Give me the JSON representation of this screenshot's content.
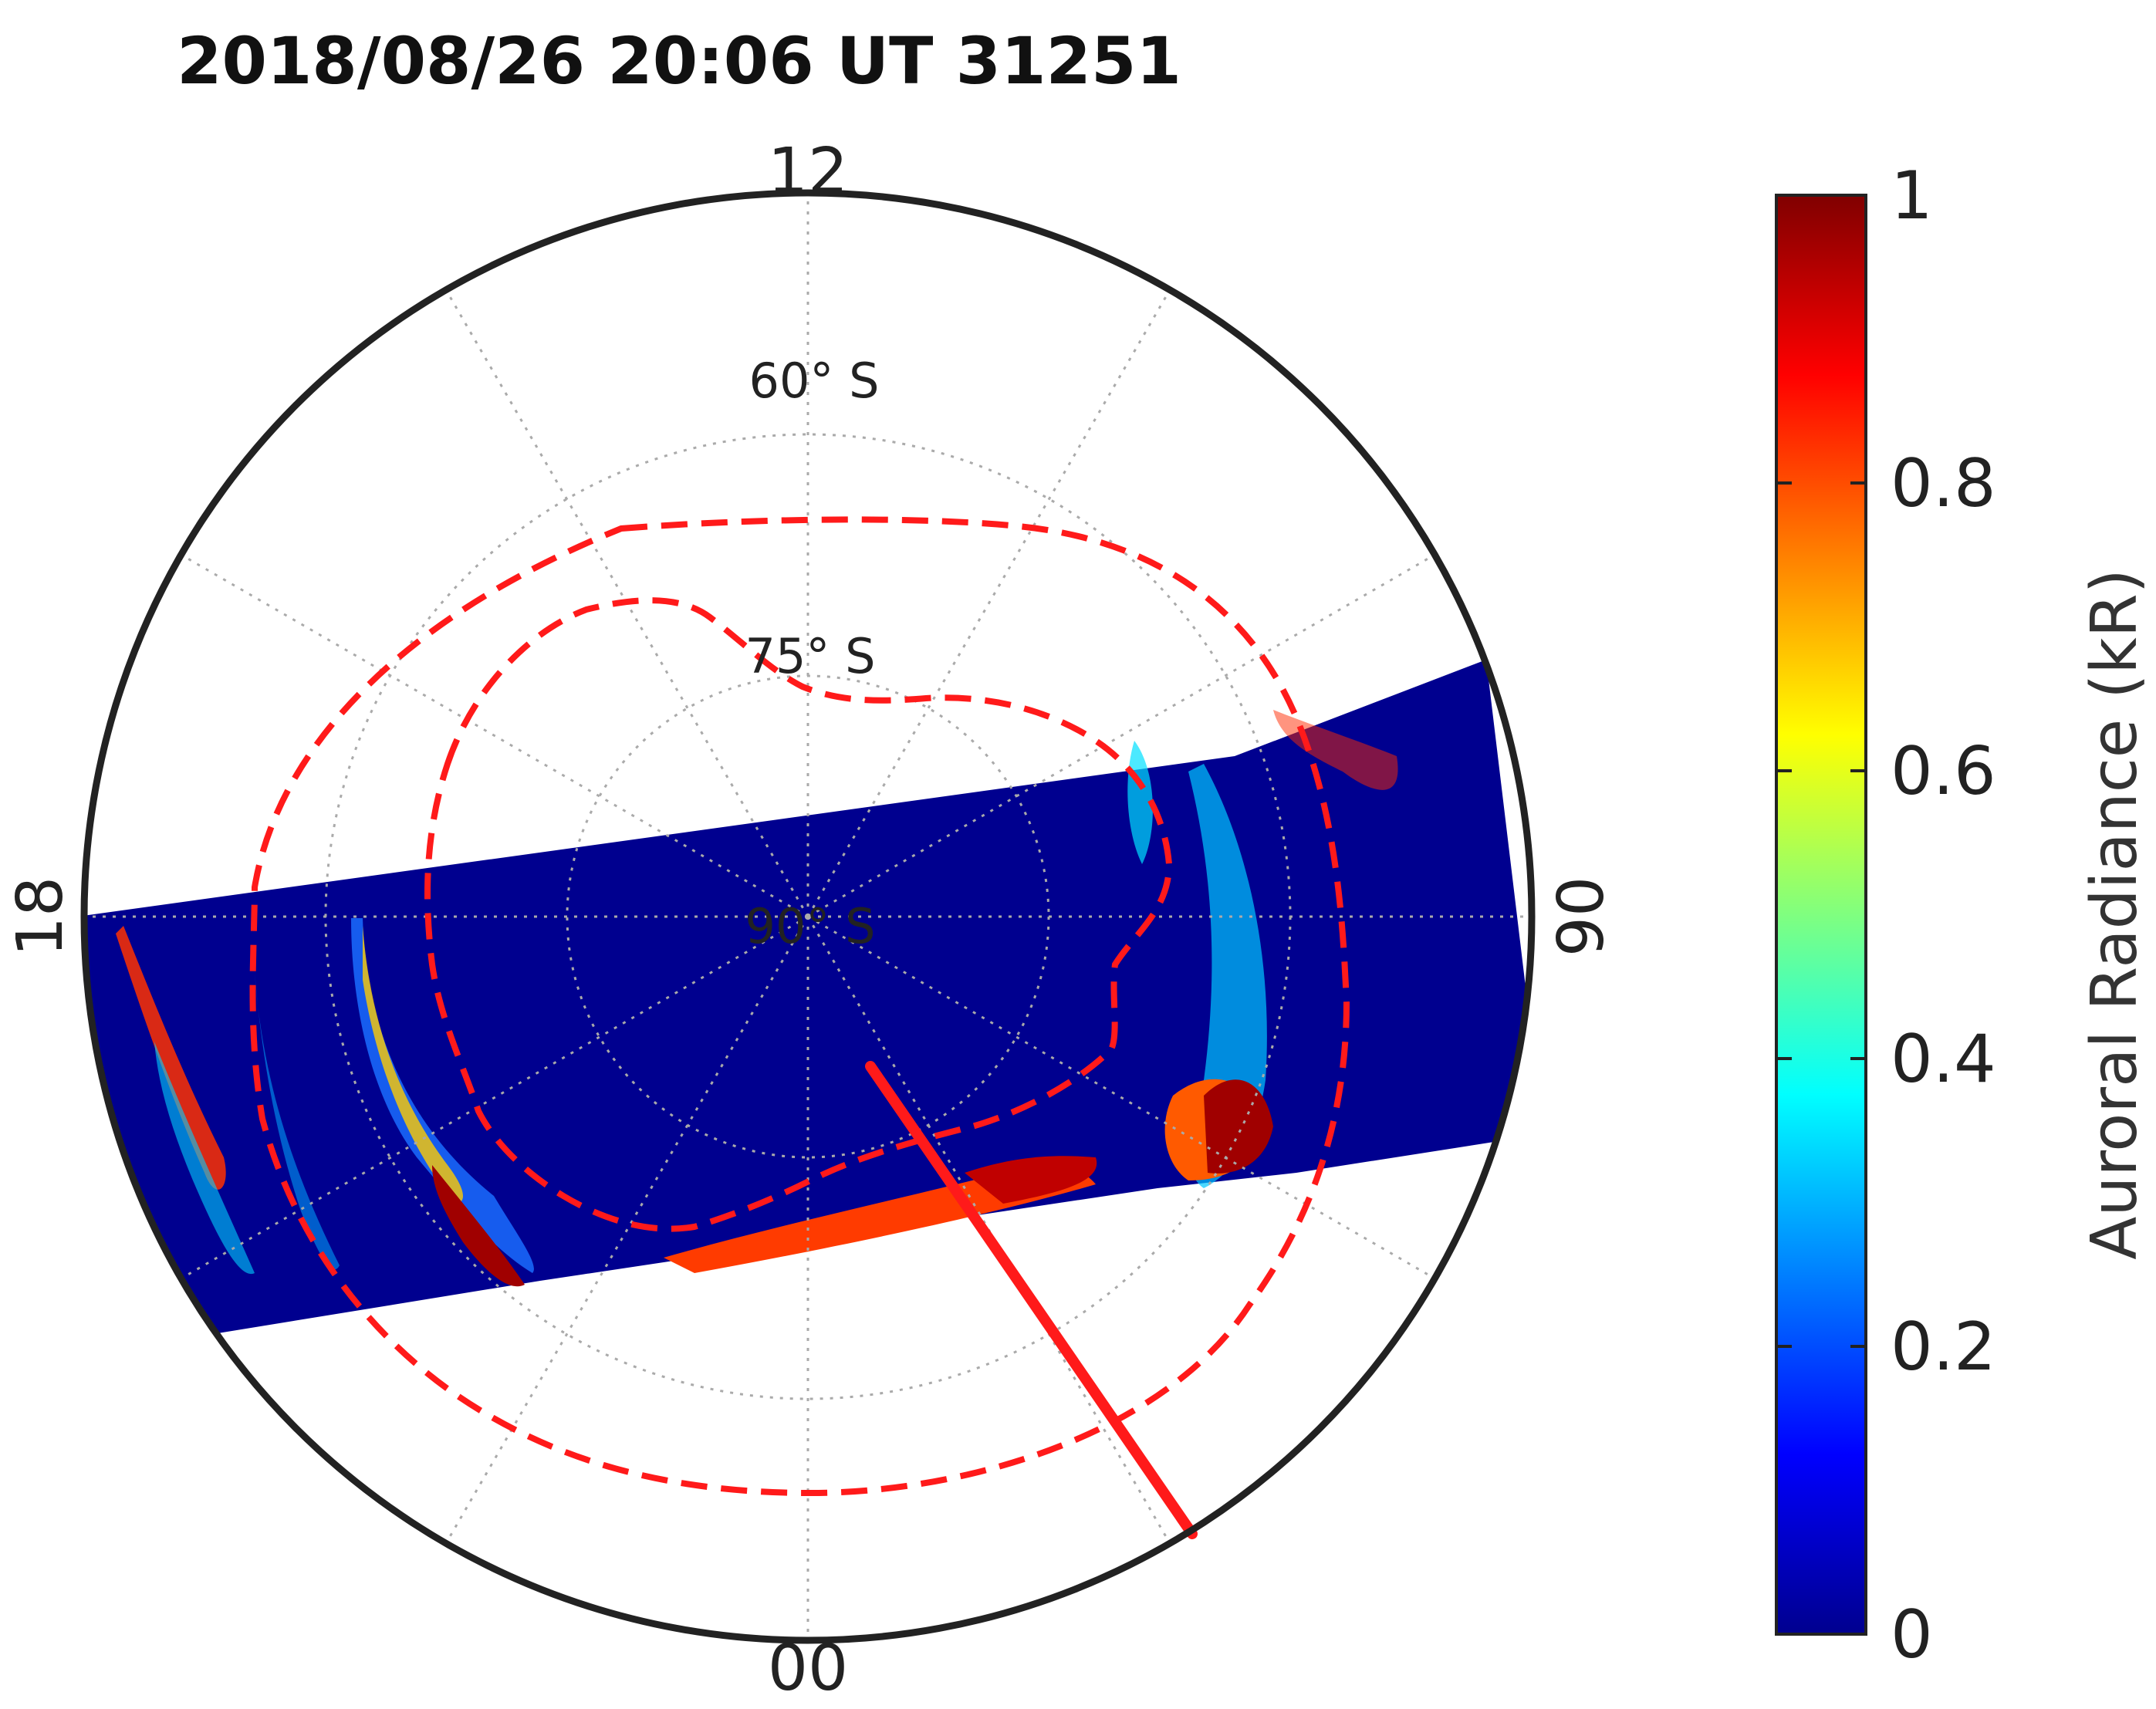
{
  "title": "2018/08/26 20:06 UT  31251",
  "mlt_labels": {
    "top": "12",
    "bottom": "00",
    "left": "18",
    "right": "06"
  },
  "lat_labels": [
    "60° S",
    "75° S",
    "90° S"
  ],
  "colorbar": {
    "label": "Auroral Radiance (kR)",
    "ticks": [
      "0",
      "0.2",
      "0.4",
      "0.6",
      "0.8",
      "1"
    ],
    "range": [
      0,
      1
    ],
    "colormap": "jet"
  },
  "colors": {
    "swath_background": "#00008f",
    "boundary": "#ff1a1a",
    "frame": "#222222",
    "grid": "#aaaaaa"
  },
  "chart_data": {
    "type": "heatmap",
    "projection": "polar (magnetic local time vs. magnetic latitude)",
    "hemisphere": "south",
    "title": "2018/08/26 20:06 UT  31251",
    "colorbar_label": "Auroral Radiance (kR)",
    "value_range_kR": [
      0,
      1
    ],
    "lat_range_deg": [
      -90,
      -45
    ],
    "lat_gridlines_deg": [
      -60,
      -75,
      -90
    ],
    "mlt_ticks": [
      "12",
      "18",
      "00",
      "06"
    ],
    "grid": true
  }
}
